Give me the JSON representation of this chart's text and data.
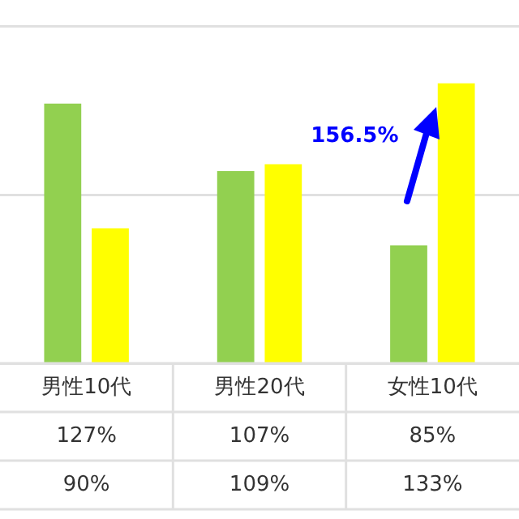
{
  "chart_data": {
    "type": "bar",
    "categories": [
      "男性10代",
      "男性20代",
      "女性10代"
    ],
    "series": [
      {
        "color": "#92d050",
        "values": [
          127,
          107,
          85
        ],
        "value_labels": [
          "127%",
          "107%",
          "85%"
        ]
      },
      {
        "color": "#ffff00",
        "values": [
          90,
          109,
          133
        ],
        "value_labels": [
          "90%",
          "109%",
          "133%"
        ]
      }
    ],
    "ylim": [
      50,
      150
    ],
    "yticks": [
      {
        "value": 50,
        "label": null
      },
      {
        "value": 100,
        "label": null
      },
      {
        "value": 150,
        "label": null
      }
    ],
    "grid": "y",
    "tick_labels": "x",
    "legend": false,
    "annotations": [
      "156.5%"
    ]
  }
}
